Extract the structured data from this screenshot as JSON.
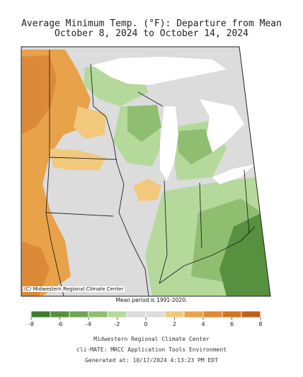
{
  "title_line1": "Average Minimum Temp. (°F): Departure from Mean",
  "title_line2": "October 8, 2024 to October 14, 2024",
  "credit": "(C) Midwestern Regional Climate Center",
  "mean_period": "Mean period is 1991-2020.",
  "legend": {
    "ticks": [
      "-8",
      "-6",
      "-4",
      "-2",
      "0",
      "2",
      "4",
      "6",
      "8"
    ],
    "colors": [
      "#3e7a2c",
      "#57903e",
      "#6fa552",
      "#8fbe70",
      "#b5d99b",
      "#dcdcdc",
      "#dcdcdc",
      "#f2c87d",
      "#e8a24a",
      "#e0892e",
      "#d47420",
      "#c0601a"
    ]
  },
  "footer": {
    "line1": "Midwestern Regional Climate Center",
    "line2": "cli-MATE: MRCC Application Tools Environment",
    "line3": "Generated at: 10/17/2024 4:13:23 PM EDT"
  },
  "map_colors": {
    "neutral": "#dcdcdc",
    "warm_light": "#f2c87d",
    "warm_mid": "#e8a24a",
    "warm_strong": "#dd8a38",
    "cool_light": "#b5d99b",
    "cool_mid": "#8fbe70",
    "cool_strong": "#57903e",
    "lake": "#ffffff"
  }
}
